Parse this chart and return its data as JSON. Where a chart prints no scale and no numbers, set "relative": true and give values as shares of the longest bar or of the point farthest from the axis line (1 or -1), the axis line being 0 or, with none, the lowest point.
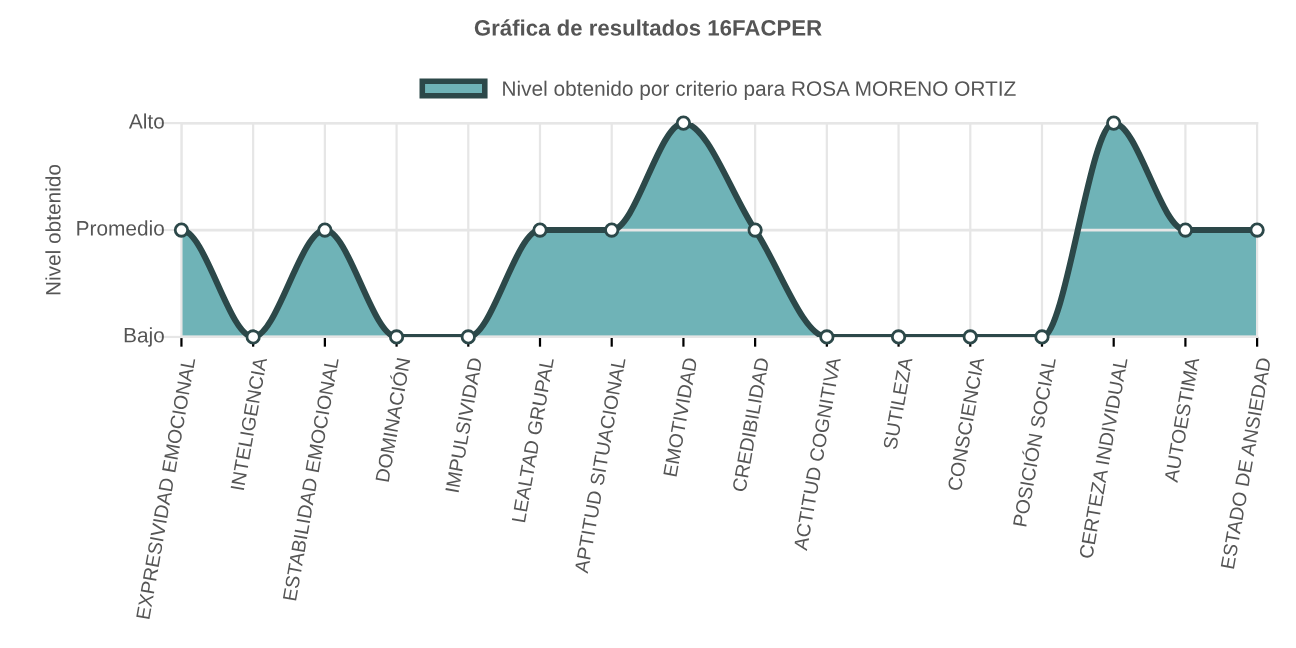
{
  "chart_data": {
    "type": "area",
    "title": "Gráfica de resultados 16FACPER",
    "ylabel": "Nivel obtenido",
    "relative": true,
    "categories": [
      "EXPRESIVIDAD EMOCIONAL",
      "INTELIGENCIA",
      "ESTABILIDAD EMOCIONAL",
      "DOMINACIÓN",
      "IMPULSIVIDAD",
      "LEALTAD GRUPAL",
      "APTITUD SITUACIONAL",
      "EMOTIVIDAD",
      "CREDIBILIDAD",
      "ACTITUD COGNITIVA",
      "SUTILEZA",
      "CONSCIENCIA",
      "POSICIÓN SOCIAL",
      "CERTEZA INDIVIDUAL",
      "AUTOESTIMA",
      "ESTADO DE ANSIEDAD"
    ],
    "series": [
      {
        "name": "Nivel obtenido por criterio para ROSA MORENO ORTIZ",
        "color": "#6fb3b7",
        "values": [
          0.5,
          0,
          0.5,
          0,
          0,
          0.5,
          0.5,
          1,
          0.5,
          0,
          0,
          0,
          0,
          1,
          0.5,
          0.5
        ]
      }
    ],
    "ref_lines": [
      {
        "axis": "y",
        "value": 0,
        "label": "Bajo"
      },
      {
        "axis": "y",
        "value": 0.5,
        "label": "Promedio"
      },
      {
        "axis": "y",
        "value": 1,
        "label": "Alto"
      }
    ],
    "grid": "x",
    "legend": "top",
    "marker": "circle",
    "line_style": "solid"
  }
}
